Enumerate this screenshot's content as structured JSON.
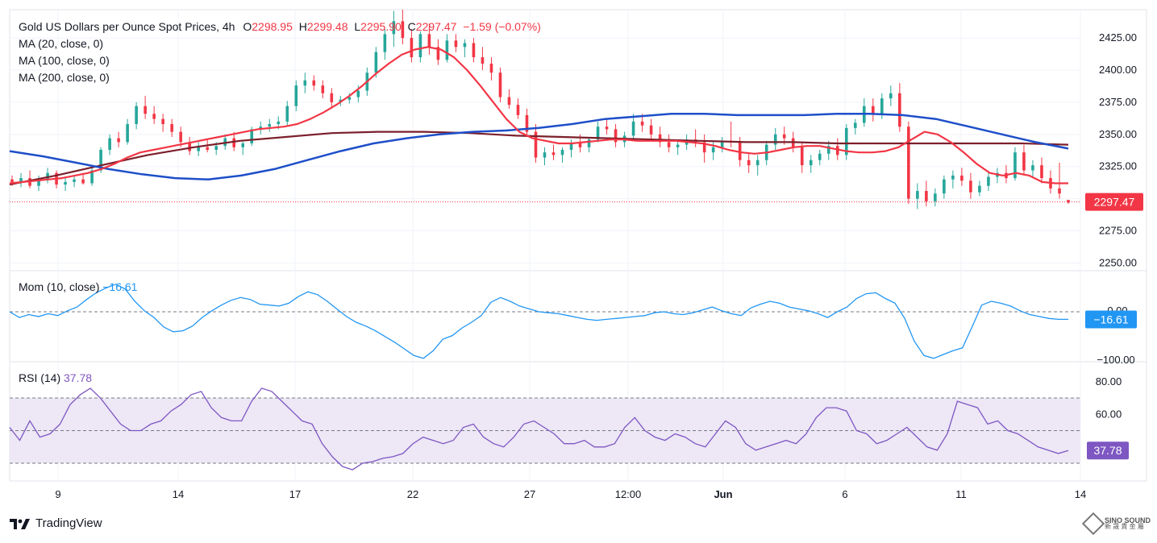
{
  "header": {
    "symbol": "Gold US Dollars per Ounce Spot Prices, 4h",
    "open_label": "O",
    "open": "2298.95",
    "high_label": "H",
    "high": "2299.48",
    "low_label": "L",
    "low": "2295.90",
    "close_label": "C",
    "close": "2297.47",
    "change": "−1.59 (−0.07%)"
  },
  "indicators": {
    "ma20": "MA (20, close, 0)",
    "ma100": "MA (100, close, 0)",
    "ma200": "MA (200, close, 0)",
    "mom_label": "Mom (10, close)",
    "mom_value": "−16.61",
    "rsi_label": "RSI (14)",
    "rsi_value": "37.78"
  },
  "branding": {
    "logo_text": "TradingView",
    "watermark_line1": "SINO SOUND",
    "watermark_line2": "新 晟 貴 金 屬"
  },
  "colors": {
    "up": "#26a69a",
    "down": "#f23645",
    "ma20": "#f23645",
    "ma100": "#1e4fc9",
    "ma200": "#7b1f2b",
    "mom": "#2196f3",
    "rsi": "#7e57c2",
    "rsi_band": "#ede7f6"
  },
  "chart_data": {
    "type": "candlestick",
    "timeframe": "4h",
    "x_tick_labels": [
      "9",
      "14",
      "17",
      "22",
      "27",
      "12:00",
      "Jun",
      "6",
      "11",
      "14"
    ],
    "price_axis": {
      "ticks": [
        2250,
        2275,
        2300,
        2325,
        2350,
        2375,
        2400,
        2425
      ],
      "range": [
        2244,
        2447
      ],
      "last_price": 2297.47
    },
    "candles": [
      [
        2315,
        2318,
        2310,
        2313
      ],
      [
        2313,
        2320,
        2309,
        2316
      ],
      [
        2316,
        2322,
        2308,
        2310
      ],
      [
        2310,
        2318,
        2306,
        2315
      ],
      [
        2315,
        2324,
        2312,
        2320
      ],
      [
        2320,
        2322,
        2308,
        2311
      ],
      [
        2311,
        2316,
        2306,
        2313
      ],
      [
        2313,
        2318,
        2309,
        2315
      ],
      [
        2315,
        2320,
        2311,
        2312
      ],
      [
        2312,
        2326,
        2310,
        2322
      ],
      [
        2322,
        2340,
        2320,
        2338
      ],
      [
        2338,
        2350,
        2334,
        2347
      ],
      [
        2347,
        2352,
        2340,
        2344
      ],
      [
        2344,
        2362,
        2342,
        2358
      ],
      [
        2358,
        2375,
        2354,
        2372
      ],
      [
        2372,
        2380,
        2362,
        2366
      ],
      [
        2366,
        2372,
        2358,
        2362
      ],
      [
        2362,
        2366,
        2352,
        2358
      ],
      [
        2358,
        2362,
        2348,
        2352
      ],
      [
        2352,
        2356,
        2340,
        2344
      ],
      [
        2344,
        2348,
        2334,
        2337
      ],
      [
        2337,
        2344,
        2333,
        2340
      ],
      [
        2340,
        2346,
        2336,
        2338
      ],
      [
        2338,
        2344,
        2334,
        2341
      ],
      [
        2341,
        2350,
        2338,
        2347
      ],
      [
        2347,
        2352,
        2337,
        2340
      ],
      [
        2340,
        2345,
        2334,
        2343
      ],
      [
        2343,
        2356,
        2341,
        2354
      ],
      [
        2354,
        2360,
        2350,
        2356
      ],
      [
        2356,
        2362,
        2352,
        2358
      ],
      [
        2358,
        2364,
        2354,
        2360
      ],
      [
        2360,
        2376,
        2356,
        2372
      ],
      [
        2372,
        2392,
        2368,
        2388
      ],
      [
        2388,
        2398,
        2382,
        2392
      ],
      [
        2392,
        2396,
        2384,
        2388
      ],
      [
        2388,
        2392,
        2378,
        2382
      ],
      [
        2382,
        2386,
        2370,
        2375
      ],
      [
        2375,
        2380,
        2372,
        2377
      ],
      [
        2377,
        2382,
        2374,
        2379
      ],
      [
        2379,
        2388,
        2375,
        2384
      ],
      [
        2384,
        2402,
        2380,
        2398
      ],
      [
        2398,
        2418,
        2394,
        2414
      ],
      [
        2414,
        2432,
        2408,
        2428
      ],
      [
        2428,
        2446,
        2418,
        2438
      ],
      [
        2438,
        2447,
        2420,
        2425
      ],
      [
        2425,
        2432,
        2406,
        2410
      ],
      [
        2410,
        2430,
        2406,
        2428
      ],
      [
        2428,
        2436,
        2412,
        2418
      ],
      [
        2418,
        2424,
        2404,
        2408
      ],
      [
        2408,
        2428,
        2406,
        2423
      ],
      [
        2423,
        2428,
        2414,
        2418
      ],
      [
        2418,
        2424,
        2410,
        2421
      ],
      [
        2421,
        2425,
        2406,
        2410
      ],
      [
        2410,
        2418,
        2400,
        2405
      ],
      [
        2405,
        2410,
        2392,
        2398
      ],
      [
        2398,
        2402,
        2375,
        2379
      ],
      [
        2379,
        2385,
        2370,
        2373
      ],
      [
        2373,
        2378,
        2362,
        2365
      ],
      [
        2365,
        2370,
        2348,
        2352
      ],
      [
        2352,
        2358,
        2328,
        2332
      ],
      [
        2332,
        2340,
        2326,
        2336
      ],
      [
        2336,
        2342,
        2330,
        2334
      ],
      [
        2334,
        2340,
        2328,
        2338
      ],
      [
        2338,
        2346,
        2332,
        2343
      ],
      [
        2343,
        2350,
        2336,
        2340
      ],
      [
        2340,
        2348,
        2336,
        2346
      ],
      [
        2346,
        2360,
        2344,
        2356
      ],
      [
        2356,
        2362,
        2350,
        2354
      ],
      [
        2354,
        2358,
        2340,
        2344
      ],
      [
        2344,
        2352,
        2340,
        2349
      ],
      [
        2349,
        2366,
        2346,
        2360
      ],
      [
        2360,
        2366,
        2352,
        2357
      ],
      [
        2357,
        2362,
        2346,
        2350
      ],
      [
        2350,
        2356,
        2340,
        2344
      ],
      [
        2344,
        2350,
        2336,
        2340
      ],
      [
        2340,
        2346,
        2334,
        2342
      ],
      [
        2342,
        2350,
        2338,
        2346
      ],
      [
        2346,
        2354,
        2340,
        2344
      ],
      [
        2344,
        2350,
        2328,
        2336
      ],
      [
        2336,
        2344,
        2330,
        2340
      ],
      [
        2340,
        2348,
        2336,
        2345
      ],
      [
        2345,
        2360,
        2340,
        2344
      ],
      [
        2344,
        2348,
        2325,
        2330
      ],
      [
        2330,
        2336,
        2320,
        2326
      ],
      [
        2326,
        2334,
        2318,
        2330
      ],
      [
        2330,
        2345,
        2326,
        2342
      ],
      [
        2342,
        2355,
        2338,
        2350
      ],
      [
        2350,
        2356,
        2342,
        2347
      ],
      [
        2347,
        2352,
        2336,
        2340
      ],
      [
        2340,
        2344,
        2320,
        2326
      ],
      [
        2326,
        2334,
        2320,
        2330
      ],
      [
        2330,
        2338,
        2326,
        2335
      ],
      [
        2335,
        2345,
        2330,
        2341
      ],
      [
        2341,
        2347,
        2330,
        2334
      ],
      [
        2334,
        2358,
        2330,
        2355
      ],
      [
        2355,
        2362,
        2350,
        2359
      ],
      [
        2359,
        2378,
        2356,
        2372
      ],
      [
        2372,
        2378,
        2360,
        2366
      ],
      [
        2366,
        2382,
        2362,
        2378
      ],
      [
        2378,
        2388,
        2372,
        2382
      ],
      [
        2382,
        2390,
        2352,
        2356
      ],
      [
        2356,
        2360,
        2296,
        2300
      ],
      [
        2300,
        2312,
        2292,
        2306
      ],
      [
        2306,
        2314,
        2294,
        2298
      ],
      [
        2298,
        2308,
        2294,
        2304
      ],
      [
        2304,
        2318,
        2300,
        2315
      ],
      [
        2315,
        2322,
        2308,
        2318
      ],
      [
        2318,
        2324,
        2310,
        2314
      ],
      [
        2314,
        2320,
        2300,
        2305
      ],
      [
        2305,
        2314,
        2302,
        2310
      ],
      [
        2310,
        2320,
        2306,
        2317
      ],
      [
        2317,
        2324,
        2312,
        2320
      ],
      [
        2320,
        2326,
        2312,
        2316
      ],
      [
        2316,
        2340,
        2314,
        2336
      ],
      [
        2336,
        2342,
        2318,
        2322
      ],
      [
        2322,
        2330,
        2316,
        2326
      ],
      [
        2326,
        2332,
        2312,
        2316
      ],
      [
        2316,
        2322,
        2304,
        2308
      ],
      [
        2308,
        2328,
        2300,
        2304
      ],
      [
        2299,
        2299,
        2296,
        2297
      ]
    ],
    "ma20": [
      2312,
      2313,
      2314,
      2315,
      2316,
      2318,
      2320,
      2323,
      2327,
      2332,
      2336,
      2338,
      2340,
      2342,
      2344,
      2346,
      2348,
      2350,
      2352,
      2354,
      2355,
      2356,
      2358,
      2362,
      2367,
      2373,
      2380,
      2388,
      2397,
      2405,
      2412,
      2416,
      2418,
      2416,
      2410,
      2400,
      2388,
      2375,
      2362,
      2352,
      2347,
      2345,
      2343,
      2343,
      2344,
      2345,
      2346,
      2346,
      2345,
      2345,
      2345,
      2345,
      2344,
      2343,
      2341,
      2338,
      2336,
      2335,
      2336,
      2338,
      2340,
      2341,
      2341,
      2339,
      2337,
      2336,
      2336,
      2337,
      2340,
      2346,
      2352,
      2350,
      2344,
      2336,
      2327,
      2320,
      2318,
      2320,
      2318,
      2313,
      2312,
      2312
    ],
    "ma100": [
      2337,
      2333,
      2328,
      2323,
      2319,
      2316,
      2315,
      2318,
      2323,
      2330,
      2337,
      2343,
      2347,
      2350,
      2352,
      2353,
      2355,
      2358,
      2362,
      2364,
      2366,
      2366,
      2365,
      2365,
      2365,
      2366,
      2366,
      2365,
      2362,
      2356,
      2350,
      2344,
      2339
    ],
    "ma200": [
      2311,
      2318,
      2326,
      2334,
      2340,
      2345,
      2348,
      2351,
      2352,
      2352,
      2351,
      2349,
      2348,
      2347,
      2346,
      2345,
      2344,
      2344,
      2343,
      2343,
      2343,
      2343,
      2343,
      2342
    ],
    "mom": [
      0,
      -12,
      -6,
      -10,
      -4,
      -8,
      2,
      10,
      26,
      40,
      50,
      58,
      48,
      22,
      2,
      -12,
      -32,
      -42,
      -40,
      -30,
      -12,
      2,
      14,
      24,
      30,
      26,
      16,
      14,
      12,
      18,
      32,
      42,
      36,
      22,
      6,
      -10,
      -22,
      -30,
      -40,
      -52,
      -64,
      -78,
      -92,
      -98,
      -82,
      -58,
      -50,
      -34,
      -22,
      -8,
      20,
      30,
      22,
      12,
      6,
      0,
      -2,
      -4,
      -8,
      -12,
      -16,
      -18,
      -16,
      -14,
      -12,
      -10,
      -8,
      -2,
      0,
      -4,
      -6,
      -2,
      4,
      10,
      2,
      -4,
      -8,
      8,
      16,
      22,
      18,
      10,
      6,
      2,
      -4,
      -12,
      0,
      10,
      28,
      38,
      40,
      28,
      18,
      -14,
      -62,
      -92,
      -98,
      -90,
      -82,
      -76,
      -32,
      14,
      22,
      18,
      12,
      2,
      -6,
      -10,
      -14,
      -16,
      -16
    ],
    "rsi": [
      52,
      44,
      56,
      46,
      48,
      54,
      66,
      72,
      76,
      70,
      62,
      54,
      50,
      50,
      54,
      56,
      62,
      66,
      72,
      74,
      64,
      58,
      56,
      56,
      68,
      76,
      74,
      68,
      62,
      56,
      54,
      42,
      34,
      28,
      26,
      30,
      31,
      33,
      34,
      36,
      42,
      46,
      44,
      42,
      44,
      52,
      54,
      46,
      42,
      40,
      46,
      54,
      56,
      52,
      48,
      42,
      42,
      44,
      40,
      40,
      42,
      52,
      58,
      50,
      46,
      44,
      48,
      46,
      42,
      40,
      48,
      56,
      52,
      42,
      38,
      40,
      42,
      44,
      42,
      48,
      58,
      64,
      64,
      62,
      50,
      48,
      42,
      44,
      48,
      52,
      46,
      40,
      38,
      48,
      68,
      66,
      64,
      54,
      56,
      50,
      48,
      44,
      40,
      38,
      36,
      37.78
    ],
    "rsi_levels": [
      30,
      50,
      70
    ],
    "mom_axis_ticks": [
      "0.00",
      "−100.00"
    ],
    "rsi_axis_ticks": [
      "60.00",
      "80.00"
    ]
  }
}
